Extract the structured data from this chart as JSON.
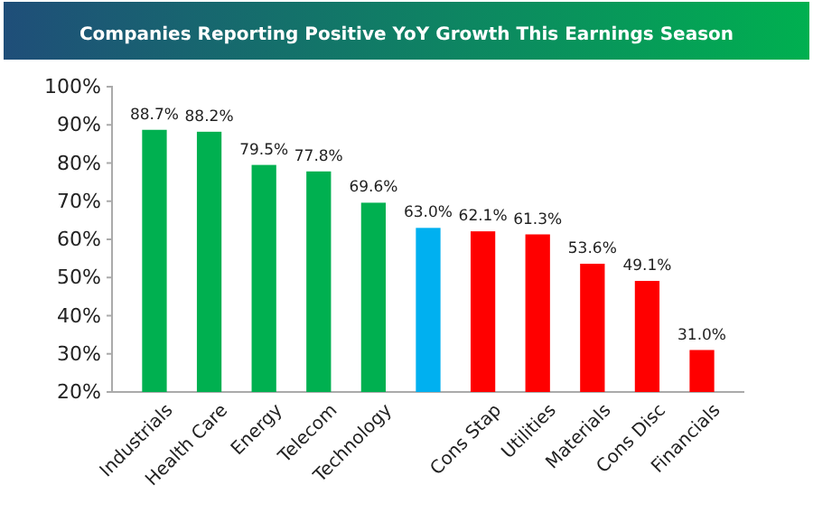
{
  "chart_data": {
    "type": "bar",
    "title": "Companies Reporting Positive YoY Growth This Earnings Season",
    "categories": [
      "Industrials",
      "Health Care",
      "Energy",
      "Telecom",
      "Technology",
      null,
      "Cons Stap",
      "Utilities",
      "Materials",
      "Cons Disc",
      "Financials"
    ],
    "values": [
      88.7,
      88.2,
      79.5,
      77.8,
      69.6,
      63.0,
      62.1,
      61.3,
      53.6,
      49.1,
      31.0
    ],
    "value_labels": [
      "88.7%",
      "88.2%",
      "79.5%",
      "77.8%",
      "69.6%",
      "63.0%",
      "62.1%",
      "61.3%",
      "53.6%",
      "49.1%",
      "31.0%"
    ],
    "colors": [
      "#00b050",
      "#00b050",
      "#00b050",
      "#00b050",
      "#00b050",
      "#00b0f0",
      "#ff0000",
      "#ff0000",
      "#ff0000",
      "#ff0000",
      "#ff0000"
    ],
    "ylim": [
      20,
      100
    ],
    "yticks": [
      {
        "value": 20,
        "label": "20%"
      },
      {
        "value": 30,
        "label": "30%"
      },
      {
        "value": 40,
        "label": "40%"
      },
      {
        "value": 50,
        "label": "50%"
      },
      {
        "value": 60,
        "label": "60%"
      },
      {
        "value": 70,
        "label": "70%"
      },
      {
        "value": 80,
        "label": "80%"
      },
      {
        "value": 90,
        "label": "90%"
      },
      {
        "value": 100,
        "label": "100%"
      }
    ],
    "grid": false
  }
}
